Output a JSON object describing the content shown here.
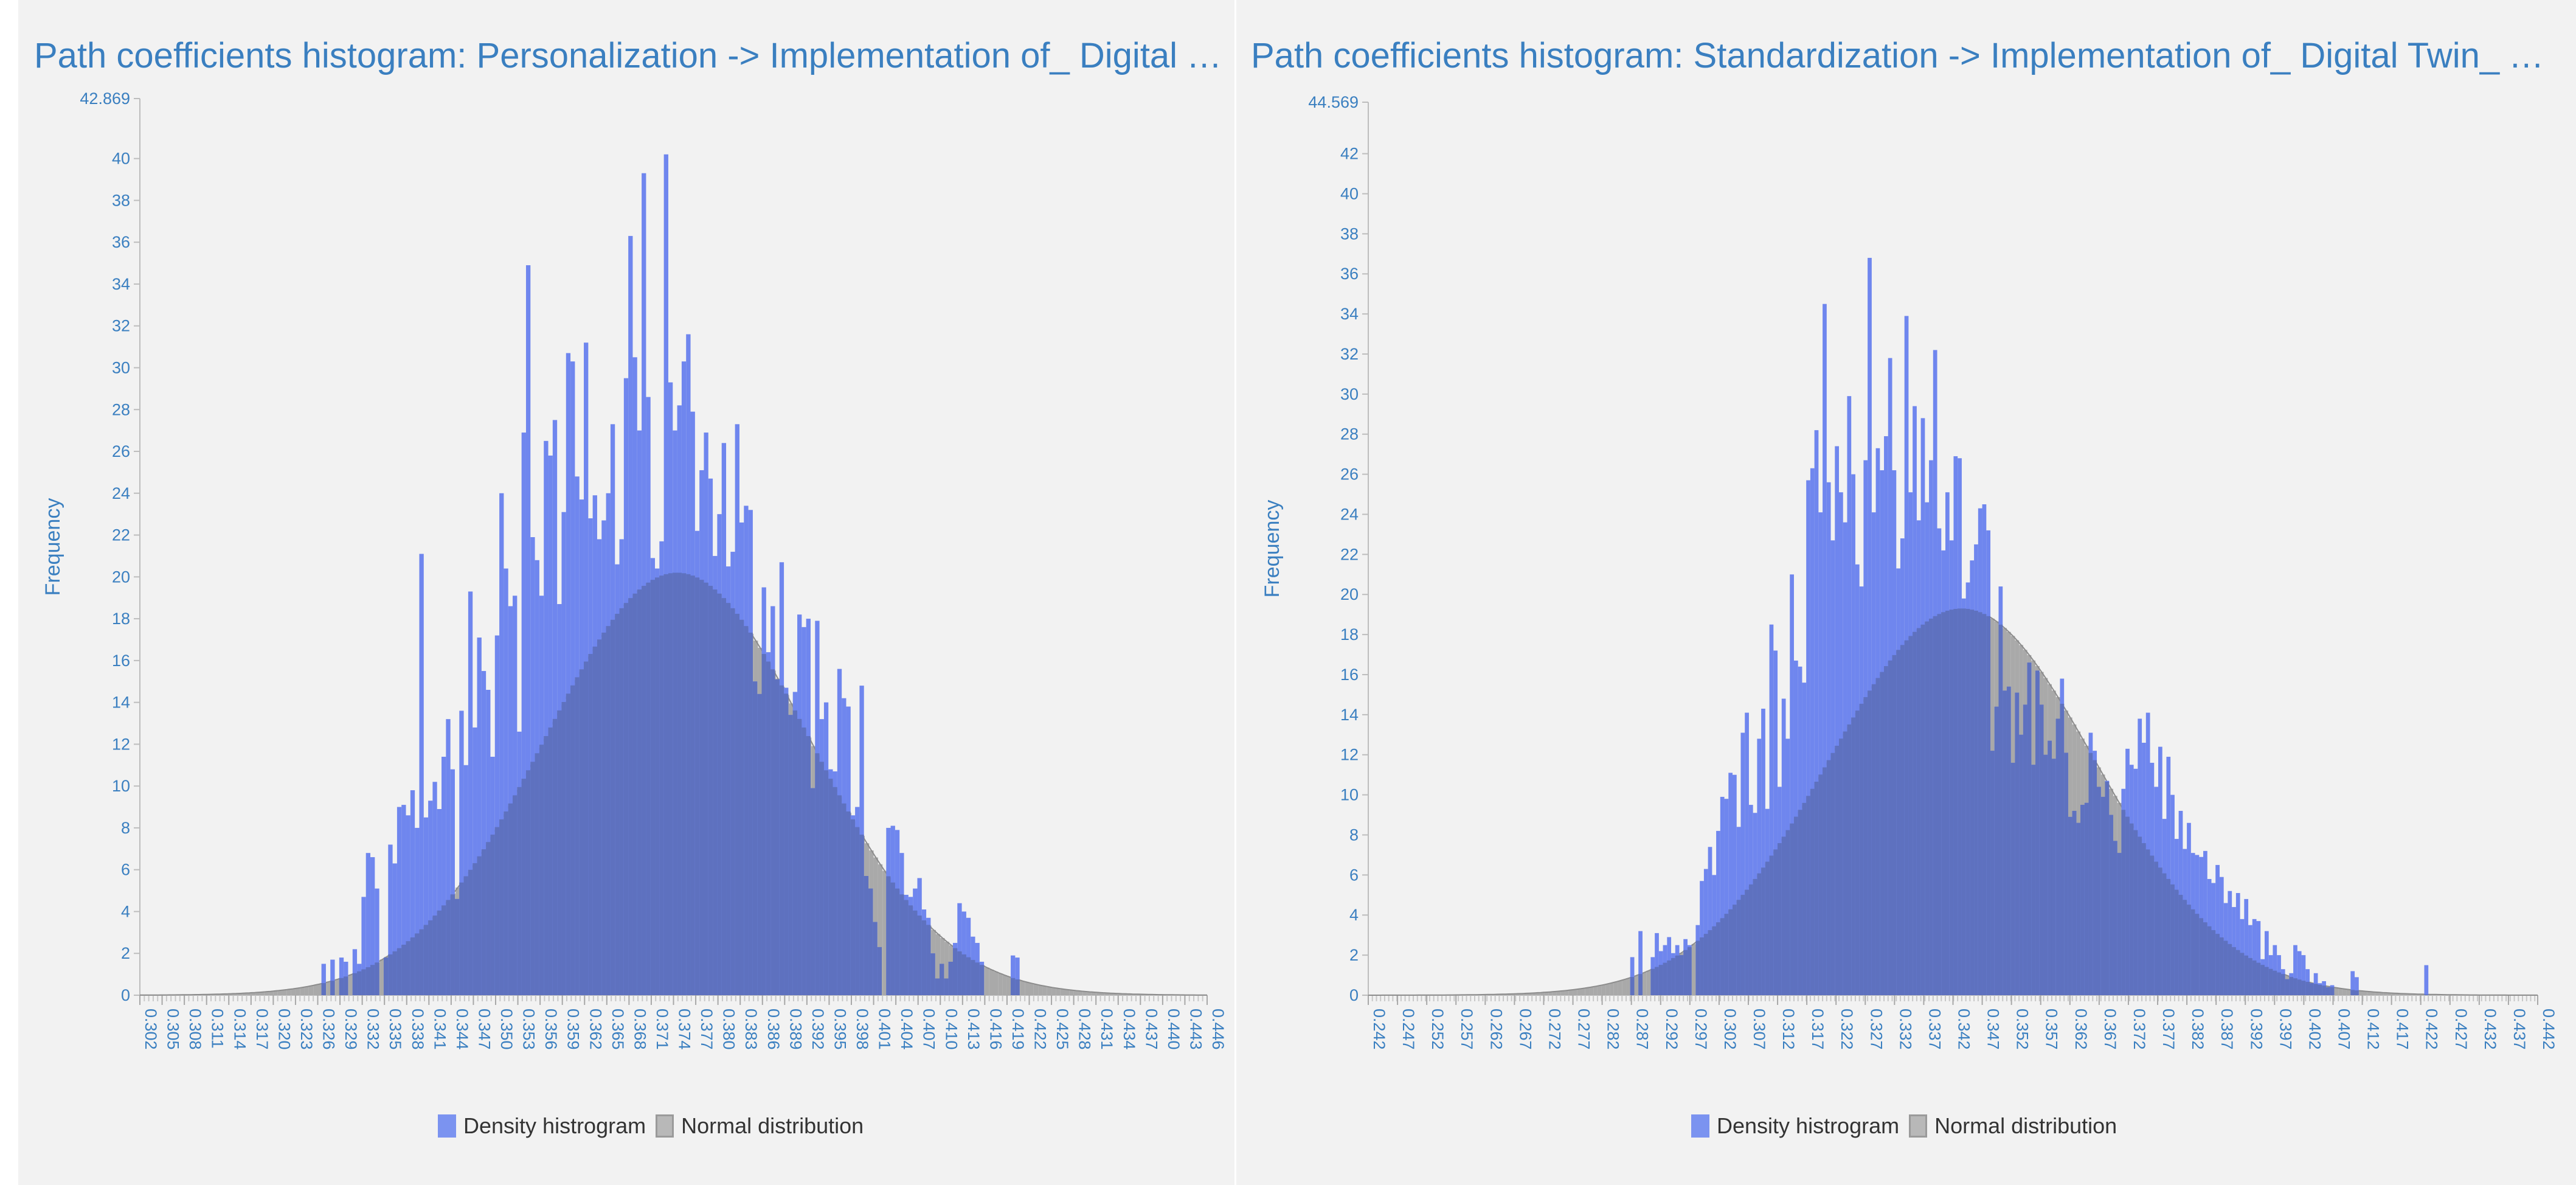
{
  "legend": {
    "density_label": "Density histrogram",
    "normal_label": "Normal distribution"
  },
  "colors": {
    "histogram": "#6f86ee",
    "normal": "#a9a9a9",
    "overlap": "#5e71bf",
    "axis_text": "#3a7fc0"
  },
  "chart_data": [
    {
      "type": "bar",
      "title": "Path coefficients histogram: Personalization -> Implementation of_ Digital Twin_ Technology ...",
      "ylabel": "Frequency",
      "xlabel": "",
      "ylim": [
        0,
        42.869
      ],
      "ytop_label": "42.869",
      "yticks": [
        0,
        2,
        4,
        6,
        8,
        10,
        12,
        14,
        16,
        18,
        20,
        22,
        24,
        26,
        28,
        30,
        32,
        34,
        36,
        38,
        40
      ],
      "xlim": [
        0.302,
        0.446
      ],
      "xtick_labels": [
        "0.302",
        "0.305",
        "0.308",
        "0.311",
        "0.314",
        "0.317",
        "0.320",
        "0.323",
        "0.326",
        "0.329",
        "0.332",
        "0.335",
        "0.338",
        "0.341",
        "0.344",
        "0.347",
        "0.350",
        "0.353",
        "0.356",
        "0.359",
        "0.362",
        "0.365",
        "0.368",
        "0.371",
        "0.374",
        "0.377",
        "0.380",
        "0.383",
        "0.386",
        "0.389",
        "0.392",
        "0.395",
        "0.398",
        "0.401",
        "0.404",
        "0.407",
        "0.410",
        "0.413",
        "0.416",
        "0.419",
        "0.422",
        "0.425",
        "0.428",
        "0.431",
        "0.434",
        "0.437",
        "0.440",
        "0.443",
        "0.446"
      ],
      "normal": {
        "mean": 0.3745,
        "sd": 0.0179,
        "peak": 20.2
      },
      "bin_start": 0.3265,
      "bin_width": 0.0006,
      "values": [
        1.5,
        0,
        1.7,
        0,
        1.8,
        1.6,
        0,
        2.2,
        1.5,
        4.7,
        6.8,
        6.6,
        5.1,
        0,
        1.8,
        7.2,
        6.3,
        9.0,
        9.1,
        8.6,
        9.8,
        8.0,
        21.1,
        8.5,
        9.3,
        10.2,
        8.9,
        11.4,
        13.2,
        10.8,
        4.6,
        13.6,
        11.0,
        19.3,
        12.8,
        17.1,
        15.5,
        14.6,
        11.4,
        17.2,
        24.0,
        20.4,
        18.6,
        19.1,
        12.6,
        26.9,
        34.9,
        21.9,
        20.8,
        19.1,
        26.5,
        25.8,
        27.5,
        18.7,
        23.1,
        30.7,
        30.3,
        24.8,
        23.7,
        31.2,
        22.8,
        23.9,
        21.8,
        22.7,
        24.0,
        27.3,
        20.6,
        21.8,
        29.5,
        36.3,
        30.5,
        27.0,
        39.3,
        28.6,
        20.9,
        20.4,
        21.7,
        40.2,
        29.3,
        27.0,
        28.2,
        30.3,
        31.6,
        27.9,
        22.2,
        25.1,
        26.9,
        24.7,
        21.0,
        23.0,
        26.4,
        20.5,
        21.2,
        27.3,
        22.6,
        23.4,
        23.2,
        15.0,
        14.4,
        19.5,
        16.4,
        18.6,
        15.1,
        20.7,
        14.7,
        13.4,
        14.5,
        18.2,
        17.6,
        18.0,
        9.9,
        17.9,
        13.2,
        14.0,
        10.8,
        10.7,
        15.6,
        14.2,
        13.8,
        8.6,
        9.0,
        14.8,
        5.7,
        5.1,
        3.5,
        2.3,
        0,
        8.0,
        8.1,
        7.9,
        6.8,
        4.8,
        4.7,
        5.1,
        5.6,
        4.1,
        3.7,
        2.0,
        0.8,
        1.5,
        0.8,
        1.6,
        2.5,
        4.4,
        4.0,
        3.7,
        2.8,
        2.5,
        1.6,
        0,
        0,
        0,
        0,
        0,
        0,
        1.9,
        1.8
      ]
    },
    {
      "type": "bar",
      "title": "Path coefficients histogram: Standardization -> Implementation of_ Digital Twin_ Technology...",
      "ylabel": "Frequency",
      "xlabel": "",
      "ylim": [
        0,
        44.569
      ],
      "ytop_label": "44.569",
      "yticks": [
        0,
        2,
        4,
        6,
        8,
        10,
        12,
        14,
        16,
        18,
        20,
        22,
        24,
        26,
        28,
        30,
        32,
        34,
        36,
        38,
        40,
        42
      ],
      "xlim": [
        0.242,
        0.442
      ],
      "xtick_labels": [
        "0.242",
        "0.247",
        "0.252",
        "0.257",
        "0.262",
        "0.267",
        "0.272",
        "0.277",
        "0.282",
        "0.287",
        "0.292",
        "0.297",
        "0.302",
        "0.307",
        "0.312",
        "0.317",
        "0.322",
        "0.327",
        "0.332",
        "0.337",
        "0.342",
        "0.347",
        "0.352",
        "0.357",
        "0.362",
        "0.367",
        "0.372",
        "0.377",
        "0.382",
        "0.387",
        "0.392",
        "0.397",
        "0.402",
        "0.407",
        "0.412",
        "0.417",
        "0.422",
        "0.427",
        "0.432",
        "0.437",
        "0.442"
      ],
      "normal": {
        "mean": 0.3435,
        "sd": 0.0228,
        "peak": 19.3
      },
      "bin_start": 0.2868,
      "bin_width": 0.0007,
      "values": [
        1.9,
        0,
        3.2,
        0,
        0,
        1.9,
        3.1,
        2.2,
        2.5,
        2.9,
        2.1,
        2.5,
        2.0,
        2.8,
        2.5,
        0,
        3.5,
        5.7,
        6.3,
        7.4,
        6.0,
        8.2,
        9.9,
        9.8,
        11.1,
        11.0,
        8.4,
        13.1,
        14.1,
        9.5,
        9.1,
        12.8,
        14.3,
        9.3,
        18.5,
        17.2,
        10.4,
        14.8,
        12.8,
        21.0,
        16.7,
        16.4,
        15.6,
        25.7,
        26.3,
        28.2,
        24.1,
        34.5,
        25.6,
        22.7,
        27.4,
        25.1,
        23.6,
        29.9,
        26.0,
        21.5,
        20.4,
        26.7,
        36.8,
        24.1,
        27.3,
        26.2,
        27.9,
        31.8,
        26.2,
        21.3,
        22.8,
        33.9,
        25.1,
        29.4,
        23.7,
        28.8,
        24.6,
        26.7,
        32.2,
        23.3,
        22.2,
        25.1,
        22.7,
        26.9,
        26.8,
        19.8,
        20.6,
        21.7,
        22.5,
        24.3,
        24.5,
        23.2,
        12.2,
        14.4,
        20.4,
        15.2,
        15.4,
        11.6,
        15.1,
        13.0,
        14.5,
        16.6,
        11.5,
        16.2,
        14.5,
        12.0,
        12.7,
        11.8,
        13.8,
        15.8,
        12.1,
        8.9,
        9.2,
        8.6,
        9.5,
        9.6,
        13.1,
        12.2,
        10.4,
        9.9,
        10.7,
        9.0,
        7.7,
        7.1,
        10.3,
        12.3,
        11.5,
        11.3,
        13.8,
        12.6,
        14.1,
        11.6,
        10.4,
        12.4,
        8.8,
        11.9,
        10.0,
        7.8,
        9.2,
        7.3,
        8.6,
        7.1,
        7.0,
        6.9,
        7.2,
        5.8,
        5.6,
        6.5,
        5.9,
        4.6,
        5.2,
        4.4,
        5.1,
        3.8,
        4.8,
        3.5,
        3.8,
        3.7,
        1.8,
        3.2,
        2.0,
        2.5,
        2.0,
        1.3,
        0.8,
        1.1,
        2.5,
        2.2,
        2.0,
        1.3,
        0.6,
        1.1,
        0.6,
        0.7,
        0.4,
        0.5,
        0,
        0,
        0,
        0,
        1.2,
        0.9,
        0,
        0,
        0,
        0,
        0,
        0,
        0,
        0,
        0,
        0,
        0,
        0,
        0,
        0,
        0,
        0,
        1.5
      ]
    }
  ]
}
